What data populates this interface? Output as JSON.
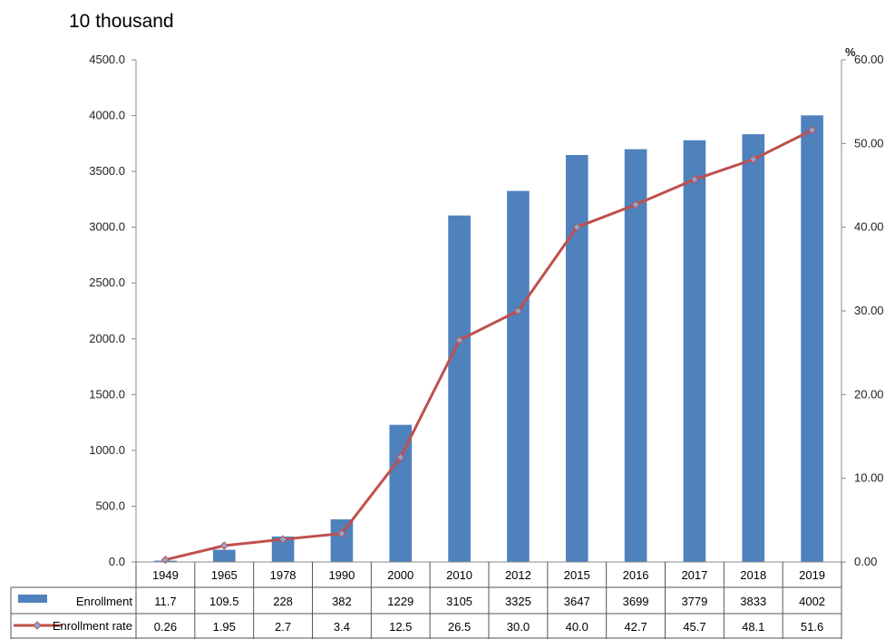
{
  "chart_data": {
    "type": "bar",
    "unit_left": "10 thousand",
    "unit_right": "%",
    "categories": [
      "1949",
      "1965",
      "1978",
      "1990",
      "2000",
      "2010",
      "2012",
      "2015",
      "2016",
      "2017",
      "2018",
      "2019"
    ],
    "series": [
      {
        "name": "Enrollment",
        "type": "bar",
        "axis": "left",
        "values": [
          11.7,
          109.5,
          228,
          382,
          1229,
          3105,
          3325,
          3647,
          3699,
          3779,
          3833,
          4002
        ],
        "labels": [
          "11.7",
          "109.5",
          "228",
          "382",
          "1229",
          "3105",
          "3325",
          "3647",
          "3699",
          "3779",
          "3833",
          "4002"
        ],
        "color": "#4f81bd"
      },
      {
        "name": "Enrollment rate",
        "type": "line",
        "axis": "right",
        "values": [
          0.26,
          1.95,
          2.7,
          3.4,
          12.5,
          26.5,
          30.0,
          40.0,
          42.7,
          45.7,
          48.1,
          51.6
        ],
        "labels": [
          "0.26",
          "1.95",
          "2.7",
          "3.4",
          "12.5",
          "26.5",
          "30.0",
          "40.0",
          "42.7",
          "45.7",
          "48.1",
          "51.6"
        ],
        "color": "#c0504d"
      }
    ],
    "y_left": {
      "min": 0,
      "max": 4500,
      "ticks": [
        "0.0",
        "500.0",
        "1000.0",
        "1500.0",
        "2000.0",
        "2500.0",
        "3000.0",
        "3500.0",
        "4000.0",
        "4500.0"
      ]
    },
    "y_right": {
      "min": 0,
      "max": 60,
      "ticks": [
        "0.00",
        "10.00",
        "20.00",
        "30.00",
        "40.00",
        "50.00",
        "60.00"
      ]
    },
    "grid": false,
    "legend": "data-table"
  }
}
